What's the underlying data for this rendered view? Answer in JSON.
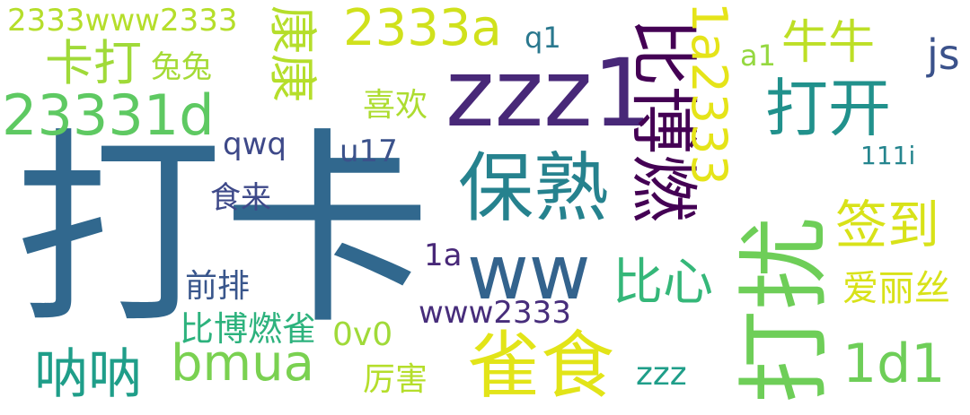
{
  "words": [
    {
      "text": "打卡",
      "color": "#31688e"
    },
    {
      "text": "zzz1",
      "color": "#482878"
    },
    {
      "text": "打扰",
      "color": "#6ece58"
    },
    {
      "text": "保熟",
      "color": "#26828e"
    },
    {
      "text": "比博燃",
      "color": "#440154"
    },
    {
      "text": "打开",
      "color": "#21918c"
    },
    {
      "text": "雀食",
      "color": "#e2e418"
    },
    {
      "text": "ww",
      "color": "#33638d"
    },
    {
      "text": "23331d",
      "color": "#5ec962"
    },
    {
      "text": "2333a",
      "color": "#d0e11c"
    },
    {
      "text": "1a2333",
      "color": "#e5e419"
    },
    {
      "text": "bmua",
      "color": "#7ad151"
    },
    {
      "text": "1d1",
      "color": "#6ece58"
    },
    {
      "text": "康康",
      "color": "#b5de2b"
    },
    {
      "text": "卡打",
      "color": "#a0da39"
    },
    {
      "text": "牛牛",
      "color": "#bddf26"
    },
    {
      "text": "签到",
      "color": "#d8e219"
    },
    {
      "text": "比心",
      "color": "#35b779"
    },
    {
      "text": "呐呐",
      "color": "#1f9e89"
    },
    {
      "text": "js",
      "color": "#3b528b"
    },
    {
      "text": "2333www2333",
      "color": "#b5de2b"
    },
    {
      "text": "www2333",
      "color": "#472d7b"
    },
    {
      "text": "兔兔",
      "color": "#a5db36"
    },
    {
      "text": "喜欢",
      "color": "#addc30"
    },
    {
      "text": "qwq",
      "color": "#3e4989"
    },
    {
      "text": "u17",
      "color": "#3b528b"
    },
    {
      "text": "食来",
      "color": "#3e4989"
    },
    {
      "text": "前排",
      "color": "#39568c"
    },
    {
      "text": "比博燃雀",
      "color": "#2db27d"
    },
    {
      "text": "0v0",
      "color": "#a0da39"
    },
    {
      "text": "厉害",
      "color": "#b5de2b"
    },
    {
      "text": "zzz",
      "color": "#1f9e89"
    },
    {
      "text": "爱丽丝",
      "color": "#d8e219"
    },
    {
      "text": "1a",
      "color": "#482878"
    },
    {
      "text": "111i",
      "color": "#25858e"
    },
    {
      "text": "q1",
      "color": "#2a788e"
    },
    {
      "text": "a1",
      "color": "#95d840"
    }
  ]
}
